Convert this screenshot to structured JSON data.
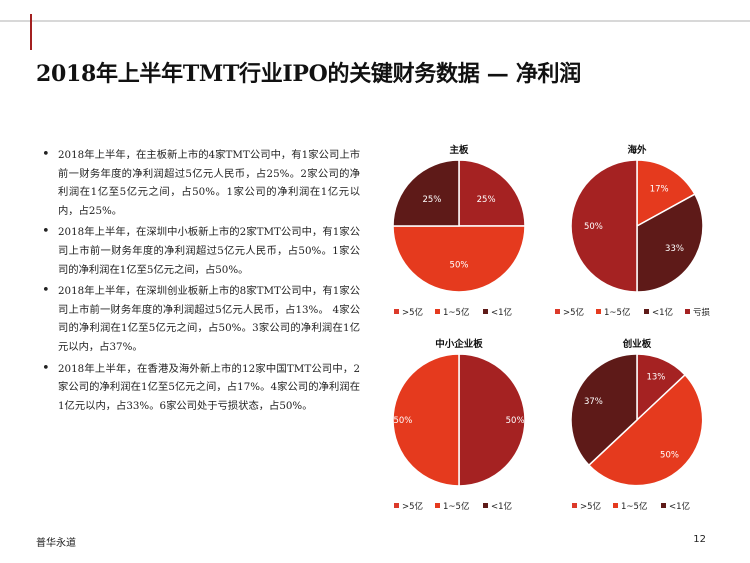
{
  "page": {
    "title": "2018年上半年TMT行业IPO的关键财务数据 — 净利润",
    "footer_left": "普华永道",
    "page_number": "12"
  },
  "bullets": [
    "2018年上半年，在主板新上市的4家TMT公司中，有1家公司上市前一财务年度的净利润超过5亿元人民币，占25%。2家公司的净利润在1亿至5亿元之间，占50%。1家公司的净利润在1亿元以内，占25%。",
    "2018年上半年，在深圳中小板新上市的2家TMT公司中，有1家公司上市前一财务年度的净利润超过5亿元人民币，占50%。1家公司的净利润在1亿至5亿元之间，占50%。",
    "2018年上半年，在深圳创业板新上市的8家TMT公司中，有1家公司上市前一财务年度的净利润超过5亿元人民币，占13%。 4家公司的净利润在1亿至5亿元之间，占50%。3家公司的净利润在1亿元以内，占37%。",
    "2018年上半年，在香港及海外新上市的12家中国TMT公司中，2家公司的净利润在1亿至5亿元之间，占17%。4家公司的净利润在1亿元以内，占33%。6家公司处于亏损状态，占50%。"
  ],
  "colors": {
    "gt5": "#dc3a2a",
    "c1to5": "#e53a1e",
    "lt1": "#5e1a18",
    "loss": "#a52222",
    "accent": "#a32020"
  },
  "chart_data": [
    {
      "type": "pie",
      "title": "主板",
      "slices": [
        {
          "label": ">5亿",
          "value": 25,
          "text": "25%",
          "color": "#a52222"
        },
        {
          "label": "1~5亿",
          "value": 50,
          "text": "50%",
          "color": "#e53a1e"
        },
        {
          "label": "<1亿",
          "value": 25,
          "text": "25%",
          "color": "#5e1a18"
        }
      ],
      "legend": [
        ">5亿",
        "1~5亿",
        "<1亿"
      ],
      "legend_position": "bottom"
    },
    {
      "type": "pie",
      "title": "海外",
      "slices": [
        {
          "label": "1~5亿",
          "value": 17,
          "text": "17%",
          "color": "#e53a1e"
        },
        {
          "label": "<1亿",
          "value": 33,
          "text": "33%",
          "color": "#5e1a18"
        },
        {
          "label": "亏损",
          "value": 50,
          "text": "50%",
          "color": "#a52222"
        }
      ],
      "legend": [
        ">5亿",
        "1~5亿",
        "<1亿",
        "亏损"
      ],
      "legend_position": "bottom"
    },
    {
      "type": "pie",
      "title": "中小企业板",
      "slices": [
        {
          "label": ">5亿",
          "value": 50,
          "text": "50%",
          "color": "#a52222"
        },
        {
          "label": "1~5亿",
          "value": 50,
          "text": "50%",
          "color": "#e53a1e"
        }
      ],
      "legend": [
        ">5亿",
        "1~5亿",
        "<1亿"
      ],
      "legend_position": "bottom"
    },
    {
      "type": "pie",
      "title": "创业板",
      "slices": [
        {
          "label": ">5亿",
          "value": 13,
          "text": "13%",
          "color": "#a52222"
        },
        {
          "label": "1~5亿",
          "value": 50,
          "text": "50%",
          "color": "#e53a1e"
        },
        {
          "label": "<1亿",
          "value": 37,
          "text": "37%",
          "color": "#5e1a18"
        }
      ],
      "legend": [
        ">5亿",
        "1~5亿",
        "<1亿"
      ],
      "legend_position": "bottom"
    }
  ],
  "legend_colors": {
    ">5亿": "#dc3a2a",
    "1~5亿": "#e53a1e",
    "<1亿": "#5e1a18",
    "亏损": "#a52222"
  }
}
